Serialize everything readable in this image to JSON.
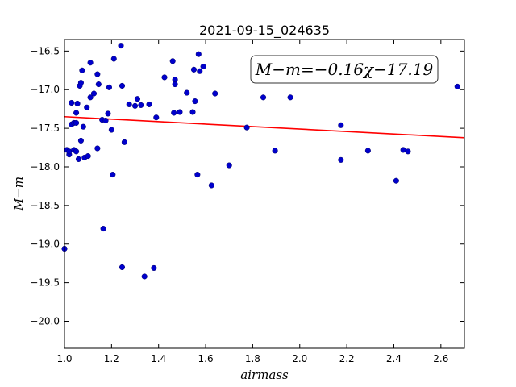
{
  "chart_data": {
    "type": "scatter",
    "title": "2021-09-15_024635",
    "xlabel": "airmass",
    "ylabel": "M−m",
    "annotation": "M−m=−0.16χ−17.19",
    "xlim": [
      1.0,
      2.7
    ],
    "ylim": [
      -20.35,
      -16.35
    ],
    "y_inverted": true,
    "grid": false,
    "x_ticks": [
      1.0,
      1.2,
      1.4,
      1.6,
      1.8,
      2.0,
      2.2,
      2.4,
      2.6
    ],
    "x_tick_labels": [
      "1.0",
      "1.2",
      "1.4",
      "1.6",
      "1.8",
      "2.0",
      "2.2",
      "2.4",
      "2.6"
    ],
    "y_ticks": [
      -16.5,
      -17.0,
      -17.5,
      -18.0,
      -18.5,
      -19.0,
      -19.5,
      -20.0
    ],
    "y_tick_labels": [
      "−16.5",
      "−17.0",
      "−17.5",
      "−18.0",
      "−18.5",
      "−19.0",
      "−19.5",
      "−20.0"
    ],
    "fit_line": {
      "slope": -0.16,
      "intercept": -17.19,
      "color": "#ff0000"
    },
    "point_color": "#0000cc",
    "points": [
      [
        1.0,
        -19.06
      ],
      [
        1.01,
        -17.78
      ],
      [
        1.02,
        -17.84
      ],
      [
        1.02,
        -17.8
      ],
      [
        1.03,
        -17.45
      ],
      [
        1.03,
        -17.17
      ],
      [
        1.04,
        -17.43
      ],
      [
        1.04,
        -17.78
      ],
      [
        1.05,
        -17.3
      ],
      [
        1.05,
        -17.8
      ],
      [
        1.05,
        -17.43
      ],
      [
        1.055,
        -17.18
      ],
      [
        1.06,
        -17.9
      ],
      [
        1.065,
        -16.95
      ],
      [
        1.07,
        -16.91
      ],
      [
        1.07,
        -17.66
      ],
      [
        1.075,
        -16.75
      ],
      [
        1.08,
        -17.48
      ],
      [
        1.085,
        -17.88
      ],
      [
        1.095,
        -17.23
      ],
      [
        1.1,
        -17.86
      ],
      [
        1.11,
        -16.65
      ],
      [
        1.11,
        -17.1
      ],
      [
        1.125,
        -17.05
      ],
      [
        1.14,
        -16.8
      ],
      [
        1.14,
        -17.76
      ],
      [
        1.145,
        -16.93
      ],
      [
        1.16,
        -17.39
      ],
      [
        1.165,
        -18.8
      ],
      [
        1.175,
        -17.4
      ],
      [
        1.185,
        -17.31
      ],
      [
        1.19,
        -16.97
      ],
      [
        1.2,
        -17.52
      ],
      [
        1.205,
        -18.1
      ],
      [
        1.21,
        -16.6
      ],
      [
        1.24,
        -16.43
      ],
      [
        1.245,
        -16.95
      ],
      [
        1.245,
        -19.3
      ],
      [
        1.255,
        -17.68
      ],
      [
        1.275,
        -17.19
      ],
      [
        1.3,
        -17.21
      ],
      [
        1.31,
        -17.12
      ],
      [
        1.325,
        -17.2
      ],
      [
        1.34,
        -19.42
      ],
      [
        1.36,
        -17.19
      ],
      [
        1.38,
        -19.31
      ],
      [
        1.39,
        -17.36
      ],
      [
        1.425,
        -16.84
      ],
      [
        1.46,
        -16.63
      ],
      [
        1.465,
        -17.3
      ],
      [
        1.47,
        -16.87
      ],
      [
        1.47,
        -16.93
      ],
      [
        1.49,
        -17.29
      ],
      [
        1.52,
        -17.04
      ],
      [
        1.545,
        -17.29
      ],
      [
        1.55,
        -16.74
      ],
      [
        1.555,
        -17.15
      ],
      [
        1.565,
        -18.1
      ],
      [
        1.57,
        -16.54
      ],
      [
        1.575,
        -16.76
      ],
      [
        1.59,
        -16.7
      ],
      [
        1.625,
        -18.24
      ],
      [
        1.64,
        -17.05
      ],
      [
        1.7,
        -17.98
      ],
      [
        1.775,
        -17.49
      ],
      [
        1.845,
        -17.1
      ],
      [
        1.895,
        -17.79
      ],
      [
        1.96,
        -17.1
      ],
      [
        2.175,
        -17.46
      ],
      [
        2.175,
        -17.91
      ],
      [
        2.29,
        -17.79
      ],
      [
        2.41,
        -18.18
      ],
      [
        2.44,
        -17.78
      ],
      [
        2.46,
        -17.8
      ],
      [
        2.67,
        -16.96
      ]
    ]
  }
}
